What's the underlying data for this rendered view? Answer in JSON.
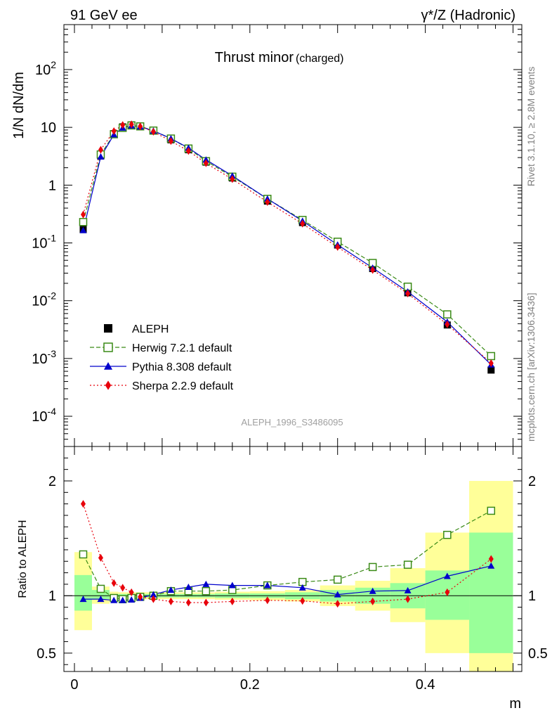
{
  "header": {
    "left": "91 GeV ee",
    "right": "γ*/Z (Hadronic)",
    "side_top": "Rivet 3.1.10, ≥ 2.8M events",
    "side_bottom": "mcplots.cern.ch [arXiv:1306.3436]"
  },
  "chart_data": [
    {
      "type": "line",
      "title": "Thrust minor",
      "title_suffix": "(charged)",
      "ylabel": "1/N dN/dm",
      "yscale": "log",
      "ylim": [
        3e-05,
        600
      ],
      "xlim": [
        -0.012,
        0.51
      ],
      "y_tick_labels": [
        "10^-4",
        "10^-3",
        "10^-2",
        "10^-1",
        "1",
        "10",
        "10^2"
      ],
      "watermark": "ALEPH_1996_S3486095",
      "legend_position": "lower-left",
      "x": [
        0.01,
        0.03,
        0.045,
        0.055,
        0.065,
        0.075,
        0.09,
        0.11,
        0.13,
        0.15,
        0.18,
        0.22,
        0.26,
        0.3,
        0.34,
        0.38,
        0.425,
        0.475
      ],
      "series": [
        {
          "name": "ALEPH",
          "color": "#000000",
          "marker": "square-filled",
          "values": [
            0.17,
            3.2,
            7.8,
            10.2,
            11.0,
            10.5,
            8.6,
            6.1,
            4.1,
            2.5,
            1.33,
            0.53,
            0.225,
            0.092,
            0.036,
            0.0137,
            0.0038,
            0.00063
          ]
        },
        {
          "name": "Herwig 7.2.1 default",
          "color": "#3a8a16",
          "marker": "square-open",
          "dash": "dashed",
          "values": [
            0.23,
            3.4,
            7.6,
            9.8,
            10.8,
            10.4,
            8.8,
            6.4,
            4.3,
            2.6,
            1.4,
            0.58,
            0.25,
            0.105,
            0.045,
            0.0175,
            0.0058,
            0.0011
          ]
        },
        {
          "name": "Pythia 8.308 default",
          "color": "#0000cc",
          "marker": "triangle-filled",
          "dash": "solid",
          "values": [
            0.165,
            3.1,
            7.5,
            9.8,
            10.7,
            10.3,
            8.7,
            6.4,
            4.4,
            2.75,
            1.45,
            0.58,
            0.24,
            0.093,
            0.037,
            0.0143,
            0.0043,
            0.00078
          ]
        },
        {
          "name": "Sherpa 2.2.9 default",
          "color": "#e8000b",
          "marker": "diamond-filled",
          "dash": "dotted",
          "values": [
            0.31,
            4.1,
            8.6,
            11.0,
            11.3,
            10.4,
            8.4,
            5.8,
            3.9,
            2.4,
            1.27,
            0.51,
            0.215,
            0.085,
            0.034,
            0.0133,
            0.0039,
            0.00083
          ]
        }
      ]
    },
    {
      "type": "line",
      "ylabel": "Ratio to ALEPH",
      "xlabel": "m",
      "ylim": [
        0.34,
        2.3
      ],
      "xlim": [
        -0.012,
        0.51
      ],
      "y_ticks": [
        0.5,
        1,
        2
      ],
      "x_ticks": [
        0,
        0.2,
        0.4
      ],
      "x_tick_labels": [
        "0",
        "0.2",
        "0.4"
      ],
      "y_tick_labels": [
        "0.5",
        "1",
        "2"
      ],
      "band_bins": [
        {
          "lo": 0.0,
          "hi": 0.02,
          "inner": [
            0.87,
            1.18
          ],
          "outer": [
            0.7,
            1.38
          ]
        },
        {
          "lo": 0.02,
          "hi": 0.04,
          "inner": [
            0.97,
            1.05
          ],
          "outer": [
            0.93,
            1.08
          ]
        },
        {
          "lo": 0.04,
          "hi": 0.05,
          "inner": [
            0.985,
            1.015
          ],
          "outer": [
            0.965,
            1.035
          ]
        },
        {
          "lo": 0.05,
          "hi": 0.06,
          "inner": [
            0.985,
            1.015
          ],
          "outer": [
            0.97,
            1.03
          ]
        },
        {
          "lo": 0.06,
          "hi": 0.07,
          "inner": [
            0.985,
            1.015
          ],
          "outer": [
            0.97,
            1.03
          ]
        },
        {
          "lo": 0.07,
          "hi": 0.08,
          "inner": [
            0.985,
            1.015
          ],
          "outer": [
            0.97,
            1.03
          ]
        },
        {
          "lo": 0.08,
          "hi": 0.1,
          "inner": [
            0.985,
            1.015
          ],
          "outer": [
            0.97,
            1.03
          ]
        },
        {
          "lo": 0.1,
          "hi": 0.12,
          "inner": [
            0.985,
            1.015
          ],
          "outer": [
            0.97,
            1.03
          ]
        },
        {
          "lo": 0.12,
          "hi": 0.14,
          "inner": [
            0.985,
            1.015
          ],
          "outer": [
            0.97,
            1.03
          ]
        },
        {
          "lo": 0.14,
          "hi": 0.16,
          "inner": [
            0.985,
            1.015
          ],
          "outer": [
            0.97,
            1.03
          ]
        },
        {
          "lo": 0.16,
          "hi": 0.2,
          "inner": [
            0.98,
            1.02
          ],
          "outer": [
            0.965,
            1.035
          ]
        },
        {
          "lo": 0.2,
          "hi": 0.24,
          "inner": [
            0.98,
            1.02
          ],
          "outer": [
            0.96,
            1.04
          ]
        },
        {
          "lo": 0.24,
          "hi": 0.28,
          "inner": [
            0.97,
            1.03
          ],
          "outer": [
            0.95,
            1.05
          ]
        },
        {
          "lo": 0.28,
          "hi": 0.32,
          "inner": [
            0.95,
            1.05
          ],
          "outer": [
            0.91,
            1.09
          ]
        },
        {
          "lo": 0.32,
          "hi": 0.36,
          "inner": [
            0.93,
            1.07
          ],
          "outer": [
            0.87,
            1.13
          ]
        },
        {
          "lo": 0.36,
          "hi": 0.4,
          "inner": [
            0.89,
            1.11
          ],
          "outer": [
            0.77,
            1.24
          ]
        },
        {
          "lo": 0.4,
          "hi": 0.45,
          "inner": [
            0.79,
            1.22
          ],
          "outer": [
            0.5,
            1.55
          ]
        },
        {
          "lo": 0.45,
          "hi": 0.5,
          "inner": [
            0.5,
            1.55
          ],
          "outer": [
            0.34,
            2.0
          ]
        }
      ],
      "series": [
        {
          "name": "Herwig 7.2.1 default",
          "color": "#3a8a16",
          "values": [
            1.36,
            1.06,
            0.98,
            0.97,
            0.98,
            0.99,
            1.0,
            1.04,
            1.04,
            1.04,
            1.05,
            1.09,
            1.12,
            1.14,
            1.25,
            1.27,
            1.53,
            1.74
          ]
        },
        {
          "name": "Pythia 8.308 default",
          "color": "#0000cc",
          "values": [
            0.97,
            0.97,
            0.96,
            0.96,
            0.965,
            0.98,
            1.01,
            1.05,
            1.075,
            1.1,
            1.09,
            1.09,
            1.07,
            1.01,
            1.04,
            1.045,
            1.17,
            1.26
          ]
        },
        {
          "name": "Sherpa 2.2.9 default",
          "color": "#e8000b",
          "values": [
            1.8,
            1.33,
            1.11,
            1.07,
            1.03,
            0.99,
            0.97,
            0.95,
            0.94,
            0.94,
            0.95,
            0.96,
            0.955,
            0.93,
            0.95,
            0.97,
            1.03,
            1.32
          ]
        }
      ]
    }
  ]
}
